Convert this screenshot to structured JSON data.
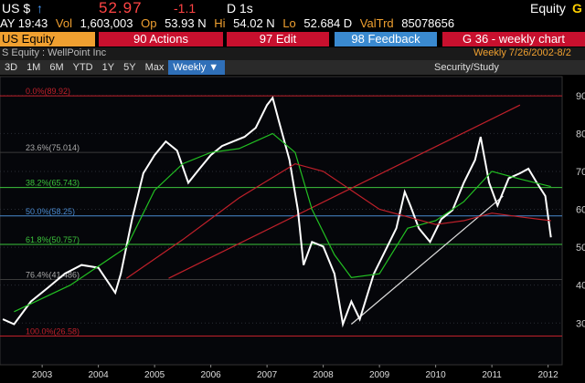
{
  "header": {
    "ticker": "US $",
    "arrow": "↑",
    "price": "52.97",
    "change": "-1.1",
    "period": "D 1s",
    "market": "Equity",
    "key": "G"
  },
  "quote": {
    "time": "AY 19:43",
    "vol_label": "Vol",
    "vol": "1,603,003",
    "op_label": "Op",
    "op": "53.93 N",
    "hi_label": "Hi",
    "hi": "54.02 N",
    "lo_label": "Lo",
    "lo": "52.684 D",
    "valtrd_label": "ValTrd",
    "valtrd": "85078656"
  },
  "menu": [
    "US Equity",
    "90 Actions",
    "97 Edit",
    "98 Feedback",
    "G 36 - weekly chart"
  ],
  "subtitle": "S Equity : WellPoint Inc",
  "range": "Weekly  7/26/2002-8/2",
  "toolbar": [
    "3D",
    "1M",
    "6M",
    "YTD",
    "1Y",
    "5Y",
    "Max"
  ],
  "frequency": "Weekly ▼",
  "study": "Security/Study",
  "chart_data": {
    "type": "line",
    "xlim": [
      2002.75,
      2012.75
    ],
    "ylim": [
      19,
      95
    ],
    "yticks": [
      30,
      40,
      50,
      60,
      70,
      80,
      90
    ],
    "xticks": [
      {
        "value": 2003.5,
        "label": "2003"
      },
      {
        "value": 2004.5,
        "label": "2004"
      },
      {
        "value": 2005.5,
        "label": "2005"
      },
      {
        "value": 2006.5,
        "label": "2006"
      },
      {
        "value": 2007.5,
        "label": "2007"
      },
      {
        "value": 2008.5,
        "label": "2008"
      },
      {
        "value": 2009.5,
        "label": "2009"
      },
      {
        "value": 2010.5,
        "label": "2010"
      },
      {
        "value": 2011.5,
        "label": "2011"
      },
      {
        "value": 2012.5,
        "label": "2012"
      }
    ],
    "grid": true,
    "levels": [
      {
        "value": 89.92,
        "label": "0.0%(89.92)",
        "color": "#c0202a"
      },
      {
        "value": 75.014,
        "label": "23.6%(75.014)",
        "color": "#3a3a3a"
      },
      {
        "value": 65.743,
        "label": "38.2%(65.743)",
        "color": "#3cc43c"
      },
      {
        "value": 58.25,
        "label": "50.0%(58.25)",
        "color": "#4a8ad0"
      },
      {
        "value": 50.757,
        "label": "61.8%(50.757)",
        "color": "#3cc43c"
      },
      {
        "value": 41.486,
        "label": "76.4%(41.486)",
        "color": "#3a3a3a"
      },
      {
        "value": 26.58,
        "label": "100.0%(26.58)",
        "color": "#c0202a"
      }
    ],
    "series": [
      {
        "color": "#ffffff",
        "x": [
          2002.8,
          2003.0,
          2003.3,
          2003.6,
          2003.9,
          2004.2,
          2004.5,
          2004.8,
          2004.9,
          2005.1,
          2005.3,
          2005.5,
          2005.7,
          2005.9,
          2006.1,
          2006.3,
          2006.5,
          2006.7,
          2006.9,
          2007.1,
          2007.3,
          2007.5,
          2007.6,
          2007.7,
          2007.9,
          2008.05,
          2008.15,
          2008.3,
          2008.5,
          2008.7,
          2008.85,
          2009.0,
          2009.15,
          2009.4,
          2009.6,
          2009.8,
          2009.95,
          2010.05,
          2010.2,
          2010.4,
          2010.6,
          2010.8,
          2011.0,
          2011.2,
          2011.3,
          2011.45,
          2011.6,
          2011.8,
          2012.0,
          2012.15,
          2012.3,
          2012.45,
          2012.55
        ],
        "values": [
          31,
          29.7,
          35.7,
          39.3,
          43,
          45.3,
          44.6,
          38,
          43,
          57.4,
          69.5,
          74.3,
          77.9,
          75.5,
          67,
          70.7,
          74.3,
          76.7,
          77.9,
          79.1,
          81.5,
          87.5,
          89.4,
          83.9,
          73,
          59.8,
          45.3,
          51.4,
          50.2,
          43,
          29.7,
          35.7,
          31,
          43,
          49,
          55,
          64.6,
          61,
          55,
          51.4,
          57.4,
          59.8,
          67,
          73,
          79.1,
          67,
          61,
          68.2,
          69.5,
          70.7,
          67,
          63.5,
          52.6
        ]
      },
      {
        "color": "#22c022",
        "x": [
          2003.0,
          2004.0,
          2005.0,
          2005.5,
          2006.0,
          2006.5,
          2007.0,
          2007.6,
          2008.0,
          2008.3,
          2008.7,
          2009.0,
          2009.5,
          2010.0,
          2010.5,
          2011.0,
          2011.5,
          2012.0,
          2012.55
        ],
        "values": [
          33,
          40,
          50,
          65,
          72,
          75,
          76,
          80,
          75,
          60,
          48,
          42,
          43,
          55,
          57,
          62,
          70,
          68,
          66
        ]
      },
      {
        "color": "#c0202a",
        "x": [
          2005.0,
          2006.0,
          2007.0,
          2008.0,
          2008.5,
          2009.0,
          2009.5,
          2010.0,
          2010.5,
          2011.0,
          2011.5,
          2012.0,
          2012.55
        ],
        "values": [
          41.8,
          52,
          63,
          72,
          70,
          65,
          60,
          58,
          56,
          57,
          59,
          58,
          57
        ]
      }
    ],
    "trendlines": [
      {
        "color": "#dddddd",
        "x": [
          2009.0,
          2011.7
        ],
        "values": [
          29.7,
          63.5
        ]
      },
      {
        "color": "#c0202a",
        "x": [
          2005.75,
          2012.0
        ],
        "values": [
          41.8,
          87.5
        ]
      }
    ]
  }
}
